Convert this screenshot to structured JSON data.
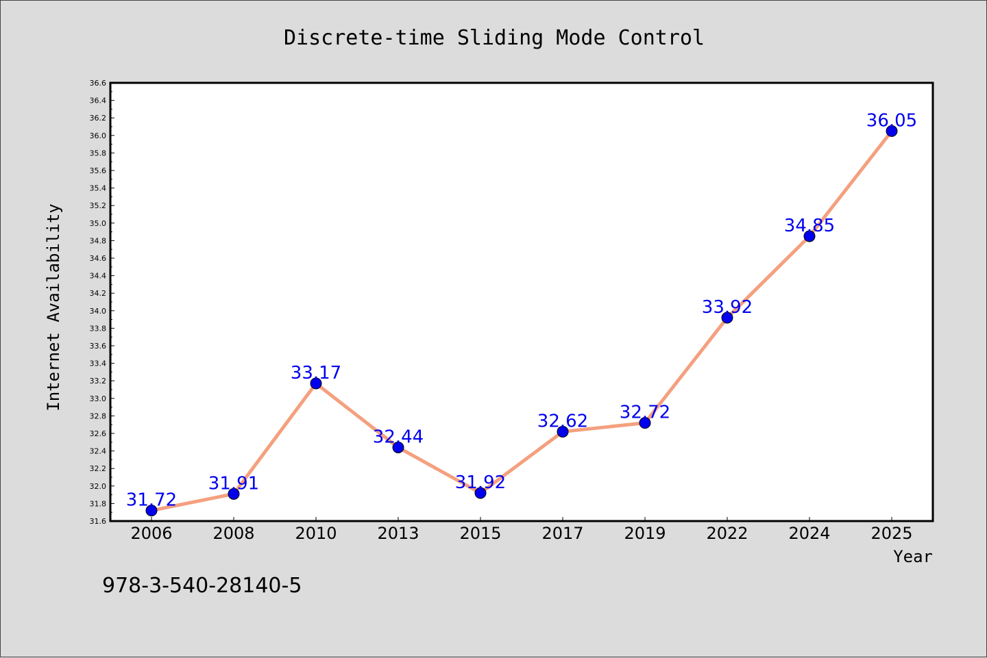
{
  "chart_data": {
    "type": "line",
    "title": "Discrete-time Sliding Mode Control",
    "xlabel": "Year",
    "ylabel": "Internet Availability",
    "categories": [
      "2006",
      "2008",
      "2010",
      "2013",
      "2015",
      "2017",
      "2019",
      "2022",
      "2024",
      "2025"
    ],
    "series": [
      {
        "values": [
          31.72,
          31.91,
          33.17,
          32.44,
          31.92,
          32.62,
          32.72,
          33.92,
          34.85,
          36.05
        ],
        "labels": [
          "31.72",
          "31.91",
          "33.17",
          "32.44",
          "31.92",
          "32.62",
          "32.72",
          "33.92",
          "34.85",
          "36.05"
        ]
      }
    ],
    "ylim": [
      31.6,
      36.6
    ],
    "ytick_step": 0.2,
    "ytick_labels": [
      "31.6",
      "31.8",
      "32.0",
      "32.2",
      "32.4",
      "32.6",
      "32.8",
      "33.0",
      "33.2",
      "33.4",
      "33.6",
      "33.8",
      "34.0",
      "34.2",
      "34.4",
      "34.6",
      "34.8",
      "35.0",
      "35.2",
      "35.4",
      "35.6",
      "35.8",
      "36.0",
      "36.2",
      "36.4",
      "36.6"
    ],
    "grid": false,
    "line_color": "#f4a07f",
    "marker_color": "#0000ee",
    "label_color": "#0000ee"
  },
  "footer": {
    "text": "978-3-540-28140-5"
  }
}
